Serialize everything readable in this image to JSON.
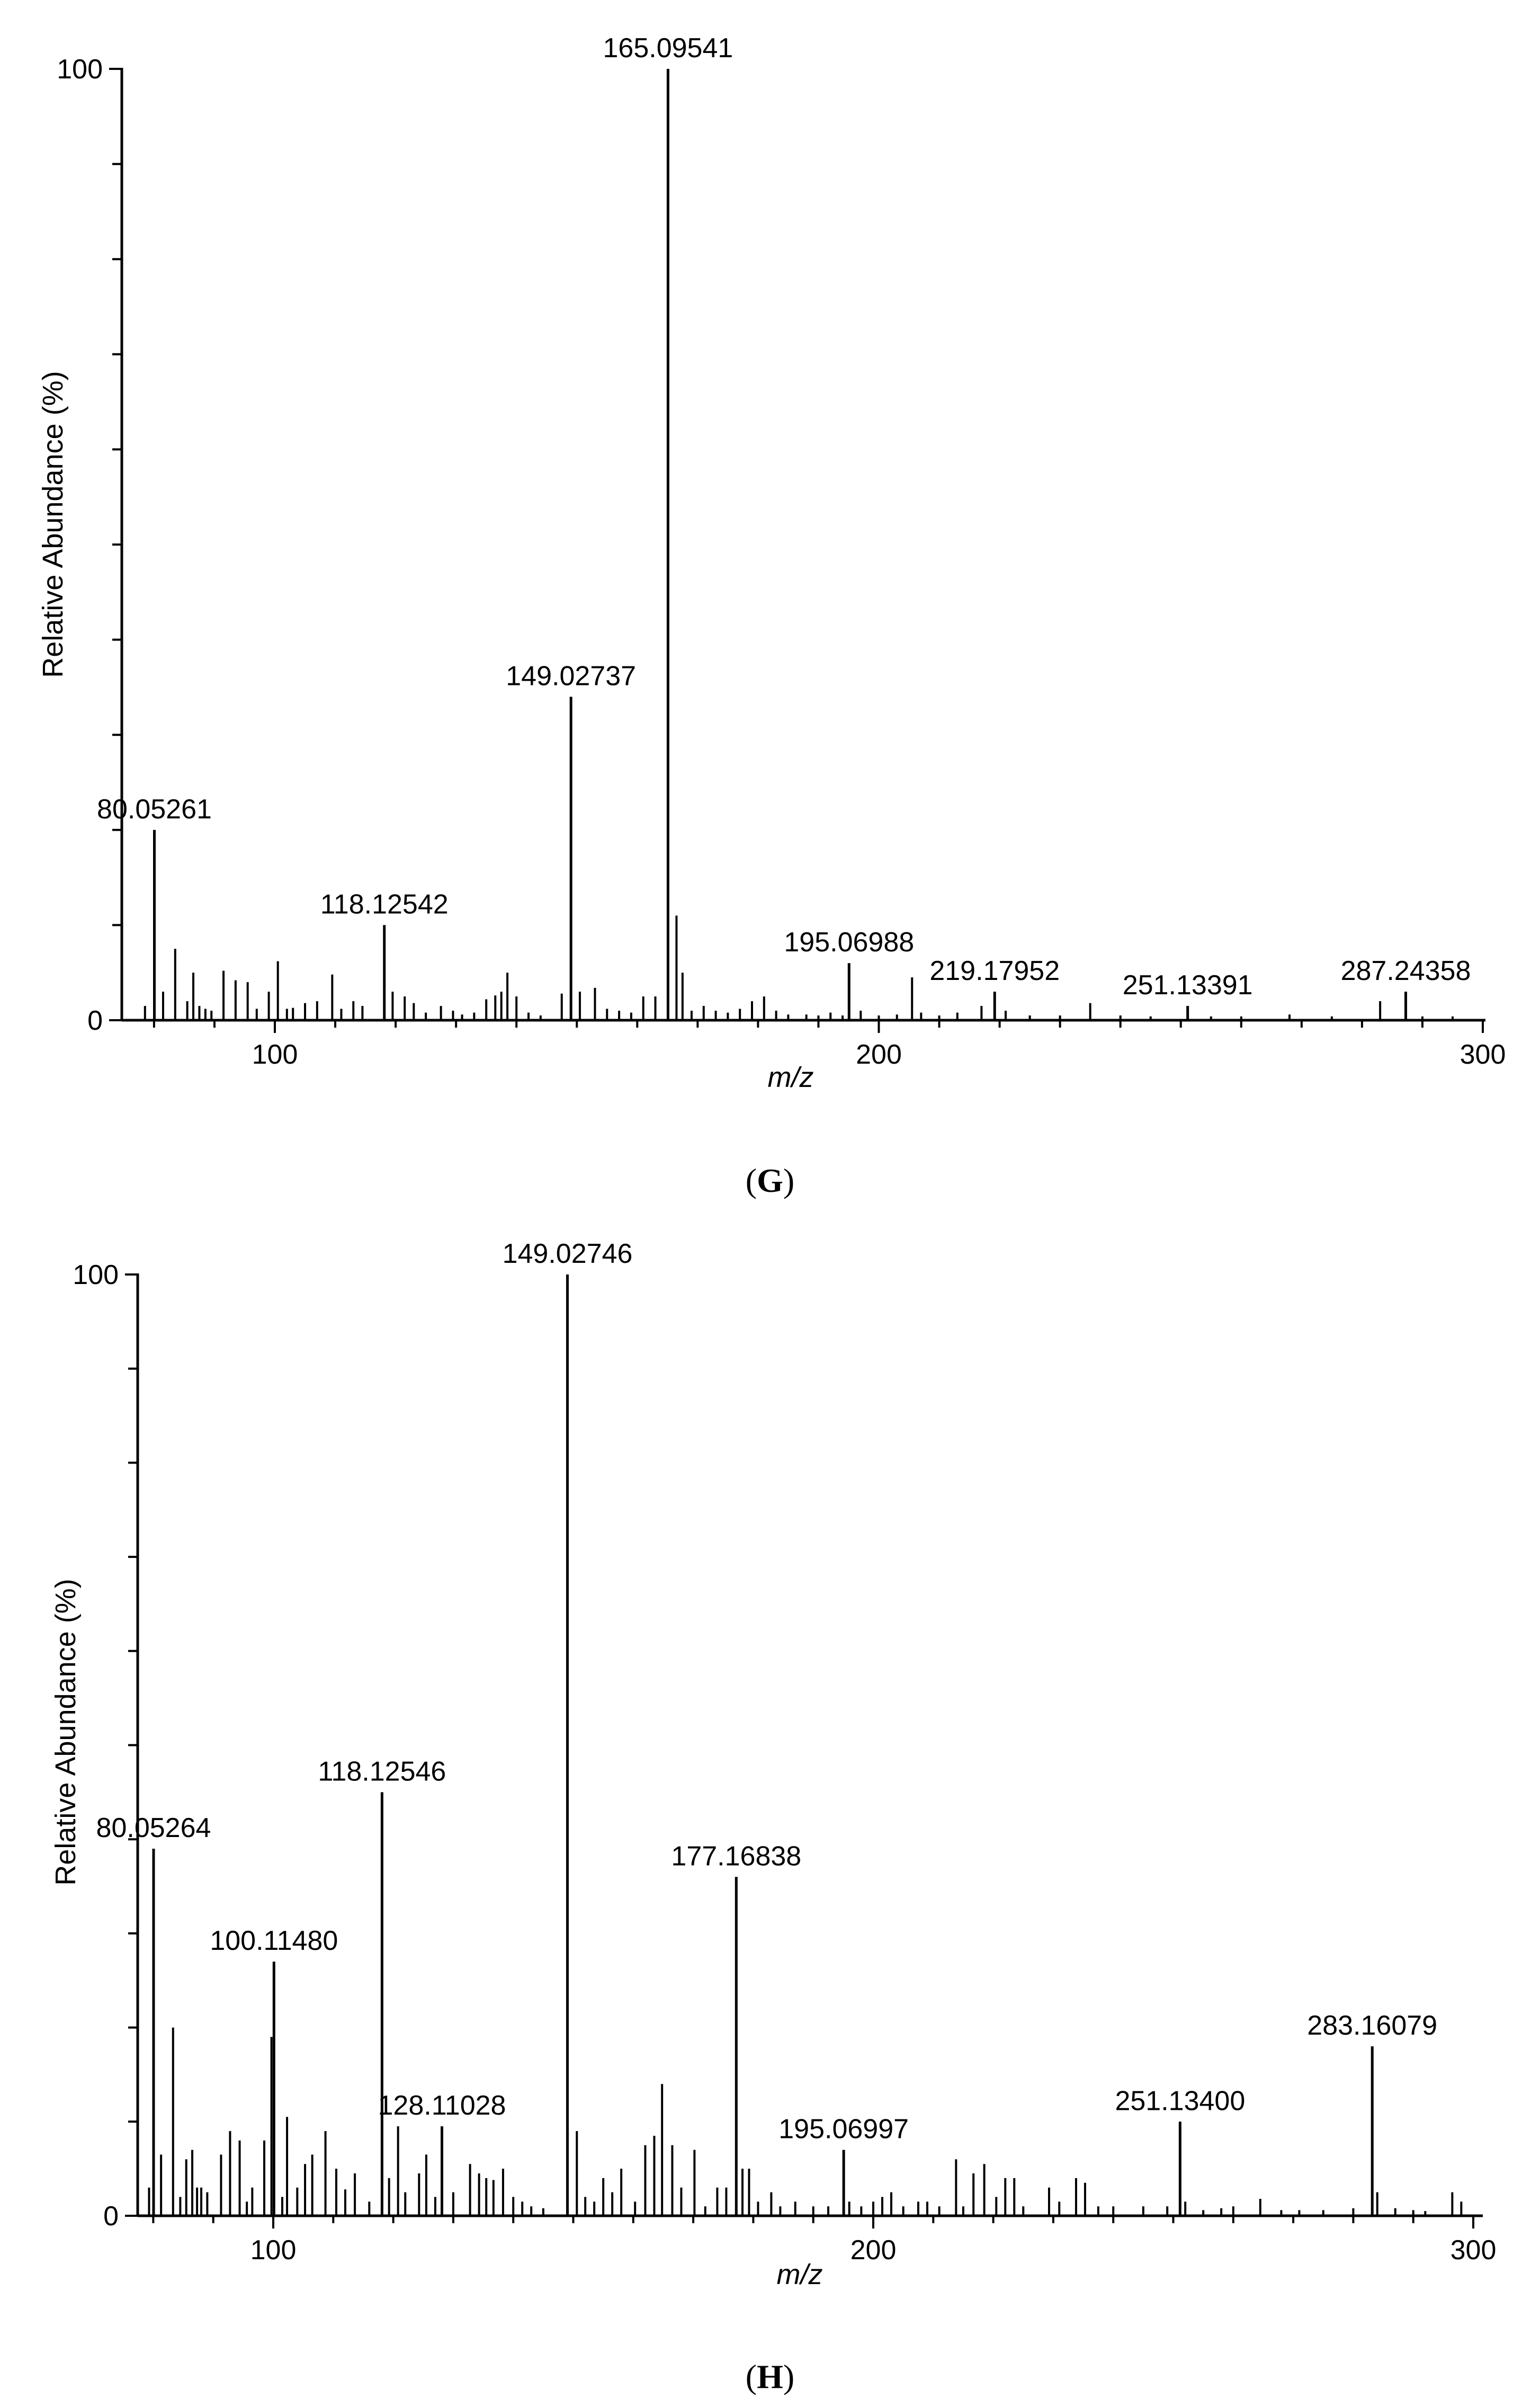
{
  "chart_data": [
    {
      "type": "bar",
      "panel": "G",
      "panel_caption": [
        "(",
        "G",
        ")"
      ],
      "title": "",
      "xlabel": "m/z",
      "ylabel": "Relative Abundance (%)",
      "xlim": [
        75,
        300
      ],
      "ylim": [
        0,
        100
      ],
      "x_ticks": [
        100,
        200,
        300
      ],
      "y_tick_labels": [
        {
          "value": 0,
          "label": "0"
        },
        {
          "value": 100,
          "label": "100"
        }
      ],
      "y_minor_ticks": [
        10,
        20,
        30,
        40,
        50,
        60,
        70,
        80,
        90
      ],
      "labeled_peaks": [
        {
          "mz": 80.05261,
          "abundance": 20,
          "label": "80.05261"
        },
        {
          "mz": 118.12542,
          "abundance": 10,
          "label": "118.12542"
        },
        {
          "mz": 149.02737,
          "abundance": 34,
          "label": "149.02737"
        },
        {
          "mz": 165.09541,
          "abundance": 100,
          "label": "165.09541"
        },
        {
          "mz": 195.06988,
          "abundance": 6,
          "label": "195.06988"
        },
        {
          "mz": 219.17952,
          "abundance": 3,
          "label": "219.17952"
        },
        {
          "mz": 251.13391,
          "abundance": 1.5,
          "label": "251.13391"
        },
        {
          "mz": 287.24358,
          "abundance": 3,
          "label": "287.24358"
        }
      ],
      "minor_peaks": [
        [
          78.5,
          1.5
        ],
        [
          81.5,
          3
        ],
        [
          83.5,
          7.5
        ],
        [
          85.5,
          2
        ],
        [
          86.5,
          5
        ],
        [
          87.5,
          1.5
        ],
        [
          88.5,
          1.2
        ],
        [
          89.5,
          1
        ],
        [
          91.5,
          5.2
        ],
        [
          93.5,
          4.2
        ],
        [
          95.5,
          4
        ],
        [
          97,
          1.2
        ],
        [
          99,
          3
        ],
        [
          100.5,
          6.2
        ],
        [
          102,
          1.2
        ],
        [
          103,
          1.3
        ],
        [
          105,
          1.8
        ],
        [
          107,
          2
        ],
        [
          109.5,
          4.8
        ],
        [
          111,
          1.2
        ],
        [
          113,
          2
        ],
        [
          114.5,
          1.5
        ],
        [
          119.5,
          3
        ],
        [
          121.5,
          2.5
        ],
        [
          123,
          1.8
        ],
        [
          125,
          0.8
        ],
        [
          127.5,
          1.5
        ],
        [
          129.5,
          1
        ],
        [
          131,
          0.6
        ],
        [
          133,
          0.8
        ],
        [
          135,
          2.2
        ],
        [
          136.5,
          2.6
        ],
        [
          137.5,
          3
        ],
        [
          138.5,
          5
        ],
        [
          140,
          2.5
        ],
        [
          142,
          0.8
        ],
        [
          144,
          0.5
        ],
        [
          147.5,
          2.8
        ],
        [
          150.5,
          3
        ],
        [
          153,
          3.4
        ],
        [
          155,
          1.2
        ],
        [
          157,
          1
        ],
        [
          159,
          0.8
        ],
        [
          161,
          2.5
        ],
        [
          163,
          2.5
        ],
        [
          166.5,
          11
        ],
        [
          167.5,
          5
        ],
        [
          169,
          1
        ],
        [
          171,
          1.5
        ],
        [
          173,
          1
        ],
        [
          175,
          0.8
        ],
        [
          177,
          1.2
        ],
        [
          179,
          2
        ],
        [
          181,
          2.5
        ],
        [
          183,
          1
        ],
        [
          185,
          0.6
        ],
        [
          188,
          0.6
        ],
        [
          190,
          0.5
        ],
        [
          192,
          0.8
        ],
        [
          194,
          0.5
        ],
        [
          197,
          1
        ],
        [
          200,
          0.5
        ],
        [
          203,
          0.6
        ],
        [
          205.5,
          4.5
        ],
        [
          207,
          0.8
        ],
        [
          210,
          0.5
        ],
        [
          213,
          0.8
        ],
        [
          217,
          1.5
        ],
        [
          221,
          1
        ],
        [
          225,
          0.5
        ],
        [
          230,
          0.5
        ],
        [
          235,
          1.8
        ],
        [
          240,
          0.5
        ],
        [
          245,
          0.4
        ],
        [
          255,
          0.4
        ],
        [
          260,
          0.4
        ],
        [
          268,
          0.6
        ],
        [
          275,
          0.4
        ],
        [
          283,
          2
        ],
        [
          290,
          0.4
        ],
        [
          295,
          0.4
        ]
      ]
    },
    {
      "type": "bar",
      "panel": "H",
      "panel_caption": [
        "(",
        "H",
        ")"
      ],
      "title": "",
      "xlabel": "m/z",
      "ylabel": "Relative Abundance (%)",
      "xlim": [
        75,
        300
      ],
      "ylim": [
        0,
        100
      ],
      "x_ticks": [
        100,
        200,
        300
      ],
      "y_tick_labels": [
        {
          "value": 0,
          "label": "0"
        },
        {
          "value": 100,
          "label": "100"
        }
      ],
      "y_minor_ticks": [
        10,
        20,
        30,
        40,
        50,
        60,
        70,
        80,
        90
      ],
      "labeled_peaks": [
        {
          "mz": 80.05264,
          "abundance": 39,
          "label": "80.05264"
        },
        {
          "mz": 100.1148,
          "abundance": 27,
          "label": "100.11480"
        },
        {
          "mz": 118.12546,
          "abundance": 45,
          "label": "118.12546"
        },
        {
          "mz": 128.11028,
          "abundance": 9.5,
          "label": "128.11028"
        },
        {
          "mz": 149.02746,
          "abundance": 100,
          "label": "149.02746"
        },
        {
          "mz": 177.16838,
          "abundance": 36,
          "label": "177.16838"
        },
        {
          "mz": 195.06997,
          "abundance": 7,
          "label": "195.06997"
        },
        {
          "mz": 251.134,
          "abundance": 10,
          "label": "251.13400"
        },
        {
          "mz": 283.16079,
          "abundance": 18,
          "label": "283.16079"
        }
      ],
      "minor_peaks": [
        [
          79.3,
          3
        ],
        [
          81.3,
          6.5
        ],
        [
          83.3,
          20
        ],
        [
          84.5,
          2
        ],
        [
          85.5,
          6
        ],
        [
          86.5,
          7
        ],
        [
          87.3,
          3
        ],
        [
          88,
          3
        ],
        [
          89,
          2.5
        ],
        [
          91.3,
          6.5
        ],
        [
          92.8,
          9
        ],
        [
          94.4,
          8
        ],
        [
          95.6,
          1.5
        ],
        [
          96.5,
          3
        ],
        [
          98.5,
          8
        ],
        [
          99.7,
          19
        ],
        [
          101.5,
          2
        ],
        [
          102.3,
          10.5
        ],
        [
          104,
          3
        ],
        [
          105.3,
          5.5
        ],
        [
          106.5,
          6.5
        ],
        [
          108.7,
          9
        ],
        [
          110.5,
          5
        ],
        [
          112,
          2.8
        ],
        [
          113.6,
          4.5
        ],
        [
          116,
          1.5
        ],
        [
          119.3,
          4
        ],
        [
          120.8,
          9.5
        ],
        [
          122,
          2.5
        ],
        [
          124.3,
          4.5
        ],
        [
          125.5,
          6.5
        ],
        [
          127,
          2
        ],
        [
          130,
          2.5
        ],
        [
          132.8,
          5.5
        ],
        [
          134.3,
          4.5
        ],
        [
          135.5,
          4
        ],
        [
          136.7,
          3.8
        ],
        [
          138.3,
          5
        ],
        [
          140,
          2
        ],
        [
          141.5,
          1.5
        ],
        [
          143,
          1
        ],
        [
          145,
          0.8
        ],
        [
          150.6,
          9
        ],
        [
          152,
          2
        ],
        [
          153.5,
          1.5
        ],
        [
          155,
          4
        ],
        [
          156.5,
          2.5
        ],
        [
          158,
          5
        ],
        [
          160.3,
          1.5
        ],
        [
          162,
          7.5
        ],
        [
          163.5,
          8.5
        ],
        [
          164.8,
          14
        ],
        [
          166.5,
          7.5
        ],
        [
          168,
          3
        ],
        [
          170.2,
          7
        ],
        [
          172,
          1
        ],
        [
          174,
          3
        ],
        [
          175.5,
          3
        ],
        [
          178.2,
          5
        ],
        [
          179.3,
          5
        ],
        [
          180.8,
          1.5
        ],
        [
          183,
          2.5
        ],
        [
          184.5,
          1
        ],
        [
          187,
          1.5
        ],
        [
          190,
          1
        ],
        [
          192.5,
          1
        ],
        [
          196,
          1.5
        ],
        [
          198,
          1
        ],
        [
          200,
          1.5
        ],
        [
          201.5,
          2
        ],
        [
          203,
          2.5
        ],
        [
          205,
          1
        ],
        [
          207.5,
          1.5
        ],
        [
          209,
          1.5
        ],
        [
          211,
          1
        ],
        [
          213.8,
          6
        ],
        [
          215,
          1
        ],
        [
          216.7,
          4.5
        ],
        [
          218.5,
          5.5
        ],
        [
          220.5,
          2
        ],
        [
          222,
          4
        ],
        [
          223.5,
          4
        ],
        [
          225,
          1
        ],
        [
          229.3,
          3
        ],
        [
          231,
          1.5
        ],
        [
          233.8,
          4
        ],
        [
          235.3,
          3.5
        ],
        [
          237.5,
          1
        ],
        [
          240,
          1
        ],
        [
          245,
          1
        ],
        [
          249,
          1
        ],
        [
          252,
          1.5
        ],
        [
          255,
          0.6
        ],
        [
          258,
          0.8
        ],
        [
          260,
          1
        ],
        [
          264.5,
          1.8
        ],
        [
          268,
          0.6
        ],
        [
          271,
          0.6
        ],
        [
          275,
          0.6
        ],
        [
          280,
          0.8
        ],
        [
          284,
          2.5
        ],
        [
          287,
          0.8
        ],
        [
          290,
          0.6
        ],
        [
          292,
          0.5
        ],
        [
          296.5,
          2.5
        ],
        [
          298,
          1.5
        ]
      ]
    }
  ]
}
